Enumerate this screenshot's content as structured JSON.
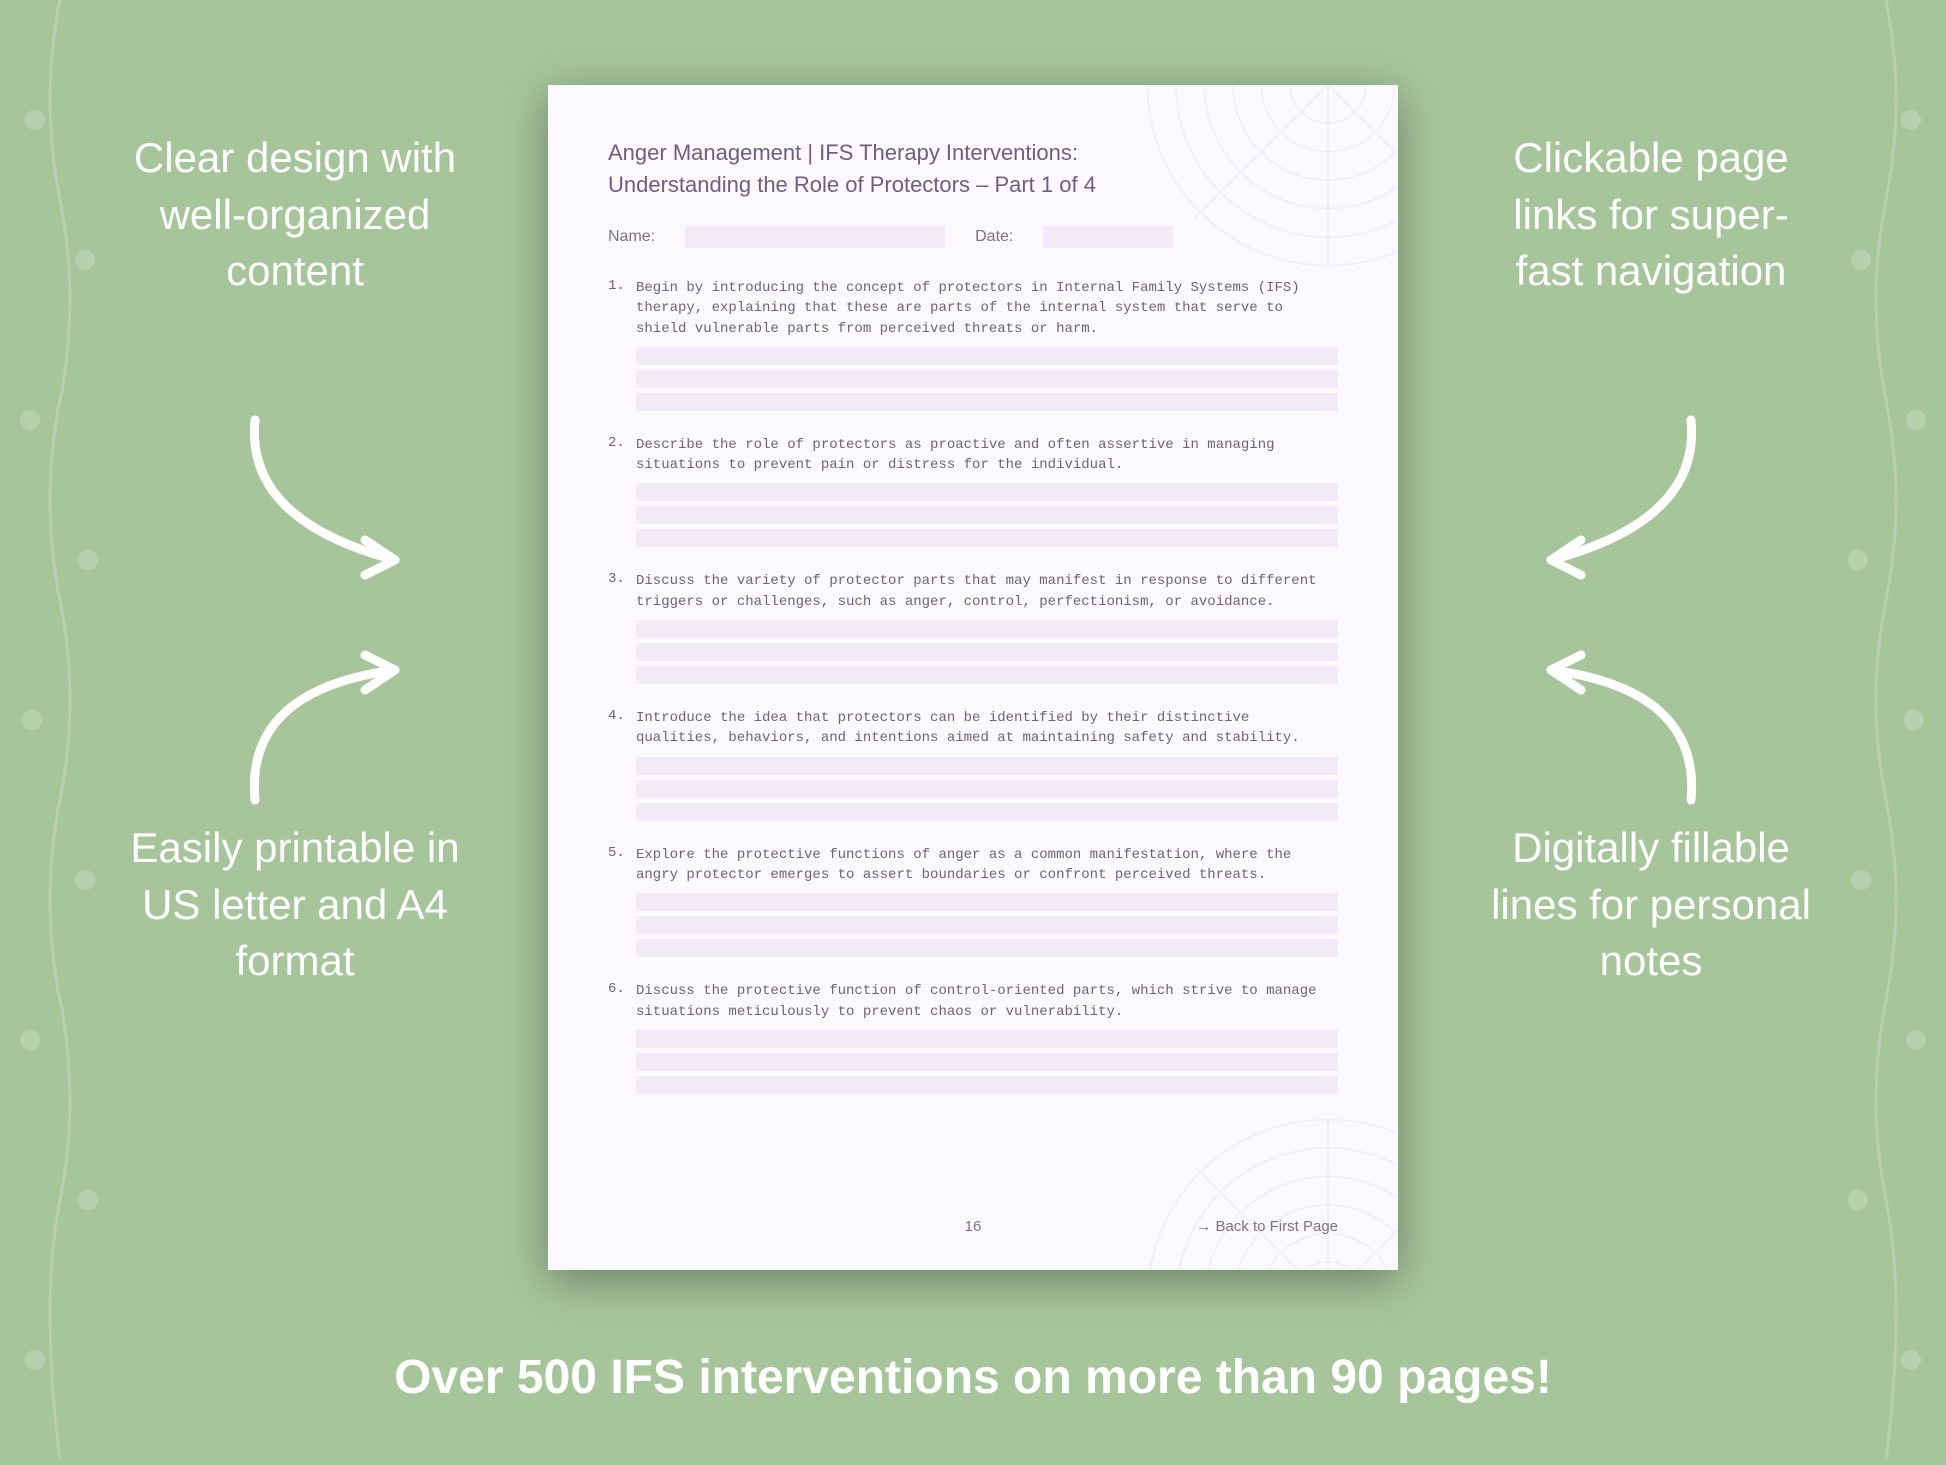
{
  "background_color": "#a6c59a",
  "page_bg": "#fbf9fd",
  "fill_line_bg": "#f0ebf7",
  "text_color": "#6b6575",
  "callout_color": "#ffffff",
  "callouts": {
    "top_left": "Clear design with well-organized content",
    "top_right": "Clickable page links for super-fast navigation",
    "bottom_left": "Easily printable in US letter and A4 format",
    "bottom_right": "Digitally fillable lines for personal notes"
  },
  "bottom_banner": "Over 500 IFS interventions on more than 90 pages!",
  "worksheet": {
    "title": "Anger Management | IFS Therapy Interventions:",
    "subtitle": "Understanding the Role of Protectors  – Part 1 of 4",
    "name_label": "Name:",
    "date_label": "Date:",
    "items": [
      {
        "num": "1.",
        "text": "Begin by introducing the concept of protectors in Internal Family Systems (IFS) therapy, explaining that these are parts of the internal system that serve to shield vulnerable parts from perceived threats or harm."
      },
      {
        "num": "2.",
        "text": "Describe the role of protectors as proactive and often assertive in managing situations to prevent pain or distress for the individual."
      },
      {
        "num": "3.",
        "text": "Discuss the variety of protector parts that may manifest in response to different triggers or challenges, such as anger, control, perfectionism, or avoidance."
      },
      {
        "num": "4.",
        "text": "Introduce the idea that protectors can be identified by their distinctive qualities, behaviors, and intentions aimed at maintaining safety and stability."
      },
      {
        "num": "5.",
        "text": "Explore the protective functions of anger as a common manifestation, where the angry protector emerges to assert boundaries or confront perceived threats."
      },
      {
        "num": "6.",
        "text": "Discuss the protective function of control-oriented parts, which strive to manage situations meticulously to prevent chaos or vulnerability."
      }
    ],
    "page_number": "16",
    "back_link": "→ Back to First Page"
  }
}
